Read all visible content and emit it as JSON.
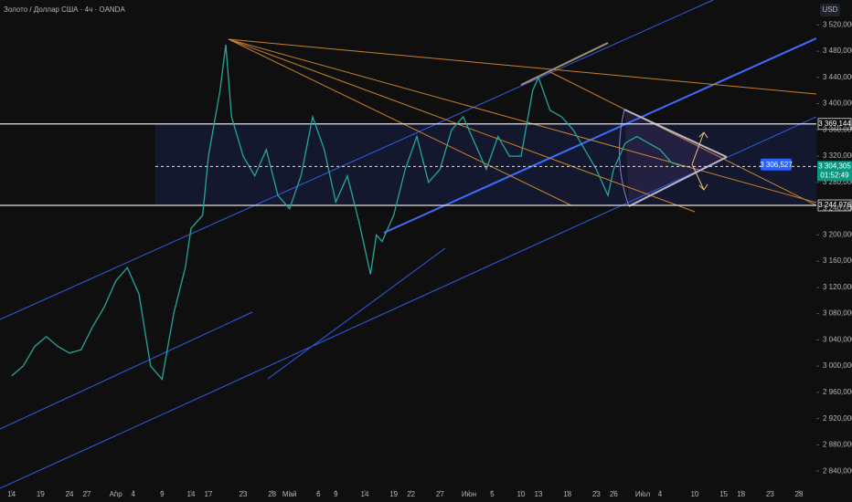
{
  "chart_data": {
    "type": "line",
    "title": "Золото / Доллар США · 4ч · OANDA",
    "currency": "USD",
    "color": "#26a69a",
    "x": [
      0,
      2,
      4,
      6,
      8,
      10,
      12,
      14,
      16,
      18,
      20,
      22,
      24,
      26,
      28,
      30,
      31,
      33,
      34,
      36,
      37,
      38,
      40,
      42,
      44,
      46,
      48,
      50,
      52,
      54,
      56,
      58,
      60,
      62,
      63,
      64,
      66,
      68,
      70,
      72,
      74,
      76,
      78,
      80,
      82,
      84,
      86,
      88,
      90,
      91,
      93,
      95,
      97,
      99,
      101,
      103,
      104,
      106,
      108,
      110,
      112,
      114,
      116
    ],
    "values": [
      2985,
      3000,
      3030,
      3045,
      3030,
      3020,
      3025,
      3060,
      3090,
      3130,
      3150,
      3110,
      3000,
      2980,
      3080,
      3150,
      3210,
      3230,
      3320,
      3420,
      3490,
      3380,
      3320,
      3290,
      3330,
      3260,
      3240,
      3290,
      3380,
      3330,
      3250,
      3290,
      3220,
      3140,
      3200,
      3190,
      3230,
      3300,
      3350,
      3280,
      3300,
      3360,
      3380,
      3340,
      3300,
      3350,
      3320,
      3320,
      3420,
      3440,
      3390,
      3380,
      3360,
      3330,
      3300,
      3260,
      3300,
      3340,
      3350,
      3340,
      3330,
      3310,
      3304.305
    ],
    "xlim": [
      -2,
      139
    ],
    "ylim": [
      2811,
      3558
    ],
    "xticks": [
      {
        "value": 0,
        "label": "14"
      },
      {
        "value": 5,
        "label": "19"
      },
      {
        "value": 10,
        "label": "24"
      },
      {
        "value": 13,
        "label": "27"
      },
      {
        "value": 18,
        "label": "Апр"
      },
      {
        "value": 21,
        "label": "4"
      },
      {
        "value": 26,
        "label": "9"
      },
      {
        "value": 31,
        "label": "14"
      },
      {
        "value": 34,
        "label": "17"
      },
      {
        "value": 40,
        "label": "23"
      },
      {
        "value": 45,
        "label": "28"
      },
      {
        "value": 48,
        "label": "Май"
      },
      {
        "value": 53,
        "label": "6"
      },
      {
        "value": 56,
        "label": "9"
      },
      {
        "value": 61,
        "label": "14"
      },
      {
        "value": 66,
        "label": "19"
      },
      {
        "value": 69,
        "label": "22"
      },
      {
        "value": 74,
        "label": "27"
      },
      {
        "value": 79,
        "label": "Июн"
      },
      {
        "value": 83,
        "label": "5"
      },
      {
        "value": 88,
        "label": "10"
      },
      {
        "value": 91,
        "label": "13"
      },
      {
        "value": 96,
        "label": "18"
      },
      {
        "value": 101,
        "label": "23"
      },
      {
        "value": 104,
        "label": "26"
      },
      {
        "value": 109,
        "label": "Июл"
      },
      {
        "value": 112,
        "label": "4"
      },
      {
        "value": 118,
        "label": "10"
      },
      {
        "value": 123,
        "label": "15"
      },
      {
        "value": 126,
        "label": "18"
      },
      {
        "value": 131,
        "label": "23"
      },
      {
        "value": 136,
        "label": "28"
      }
    ],
    "yticks": [
      {
        "value": 2840,
        "label": "2 840,000"
      },
      {
        "value": 2880,
        "label": "2 880,000"
      },
      {
        "value": 2920,
        "label": "2 920,000"
      },
      {
        "value": 2960,
        "label": "2 960,000"
      },
      {
        "value": 3000,
        "label": "3 000,000"
      },
      {
        "value": 3040,
        "label": "3 040,000"
      },
      {
        "value": 3080,
        "label": "3 080,000"
      },
      {
        "value": 3120,
        "label": "3 120,000"
      },
      {
        "value": 3160,
        "label": "3 160,000"
      },
      {
        "value": 3200,
        "label": "3 200,000"
      },
      {
        "value": 3240,
        "label": "3 240,000"
      },
      {
        "value": 3280,
        "label": "3 280,000"
      },
      {
        "value": 3320,
        "label": "3 320,000"
      },
      {
        "value": 3360,
        "label": "3 360,000"
      },
      {
        "value": 3400,
        "label": "3 400,000"
      },
      {
        "value": 3440,
        "label": "3 440,000"
      },
      {
        "value": 3480,
        "label": "3 480,000"
      },
      {
        "value": 3520,
        "label": "3 520,000"
      }
    ],
    "levels": [
      {
        "value": 3369.144,
        "label": "3 369,144"
      },
      {
        "value": 3244.976,
        "label": "3 244,976"
      }
    ],
    "current_price": {
      "value": 3304.305,
      "label": "3 304,305"
    },
    "countdown": "01:52:49",
    "alert": {
      "value": 3306.527,
      "label": "3 306,527"
    }
  }
}
